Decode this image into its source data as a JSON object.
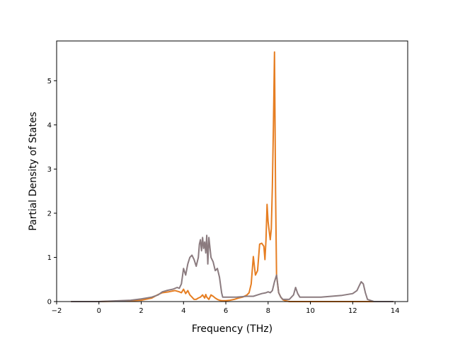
{
  "chart_data": {
    "type": "line",
    "title": "",
    "xlabel": "Frequency (THz)",
    "ylabel": "Partial Density of States",
    "xlim": [
      -2.0,
      14.6
    ],
    "ylim": [
      0,
      5.9
    ],
    "xticks": [
      -2,
      0,
      2,
      4,
      6,
      8,
      10,
      12,
      14
    ],
    "yticks": [
      0,
      1,
      2,
      3,
      4,
      5
    ],
    "grid": false,
    "legend": "none",
    "series": [
      {
        "color": "#e67e22",
        "x": [
          -1.3,
          0.0,
          1.0,
          2.0,
          2.5,
          2.8,
          3.0,
          3.3,
          3.6,
          3.8,
          3.9,
          4.0,
          4.1,
          4.2,
          4.3,
          4.4,
          4.5,
          4.6,
          4.7,
          4.8,
          4.9,
          5.0,
          5.05,
          5.1,
          5.2,
          5.3,
          5.4,
          5.5,
          5.6,
          5.7,
          5.8,
          5.9,
          6.0,
          6.2,
          6.4,
          6.6,
          6.8,
          7.0,
          7.1,
          7.2,
          7.3,
          7.35,
          7.4,
          7.5,
          7.6,
          7.7,
          7.8,
          7.85,
          7.9,
          7.95,
          8.0,
          8.05,
          8.1,
          8.15,
          8.2,
          8.25,
          8.3,
          8.35,
          8.4,
          8.45,
          8.5,
          8.6,
          8.7,
          8.8,
          9.0,
          9.5,
          10.0,
          11.0,
          12.0,
          12.5,
          13.5,
          13.9
        ],
        "y": [
          0.0,
          0.0,
          0.01,
          0.03,
          0.08,
          0.16,
          0.2,
          0.22,
          0.25,
          0.22,
          0.2,
          0.28,
          0.18,
          0.25,
          0.15,
          0.1,
          0.05,
          0.05,
          0.08,
          0.1,
          0.15,
          0.08,
          0.16,
          0.1,
          0.05,
          0.15,
          0.12,
          0.08,
          0.05,
          0.03,
          0.02,
          0.02,
          0.02,
          0.03,
          0.05,
          0.08,
          0.1,
          0.15,
          0.2,
          0.4,
          1.02,
          0.8,
          0.6,
          0.7,
          1.3,
          1.32,
          1.25,
          0.95,
          1.4,
          2.2,
          1.8,
          1.6,
          1.4,
          1.65,
          2.6,
          4.0,
          5.65,
          2.5,
          0.6,
          0.4,
          0.2,
          0.1,
          0.04,
          0.02,
          0.0,
          0.0,
          0.0,
          0.0,
          0.0,
          0.0,
          0.0,
          0.0
        ]
      },
      {
        "color": "#8b7b7f",
        "x": [
          -1.3,
          0.0,
          1.0,
          1.5,
          2.0,
          2.5,
          2.8,
          3.0,
          3.2,
          3.5,
          3.7,
          3.8,
          3.9,
          4.0,
          4.1,
          4.2,
          4.3,
          4.4,
          4.5,
          4.6,
          4.7,
          4.75,
          4.8,
          4.85,
          4.9,
          4.95,
          5.0,
          5.05,
          5.1,
          5.15,
          5.2,
          5.3,
          5.4,
          5.5,
          5.6,
          5.7,
          5.8,
          5.85,
          6.0,
          6.5,
          7.0,
          7.3,
          7.5,
          7.7,
          7.9,
          8.0,
          8.1,
          8.2,
          8.3,
          8.4,
          8.5,
          8.6,
          8.7,
          8.8,
          9.0,
          9.2,
          9.3,
          9.4,
          9.5,
          9.7,
          10.0,
          10.5,
          11.0,
          11.5,
          12.0,
          12.2,
          12.3,
          12.4,
          12.5,
          12.6,
          12.7,
          13.0,
          13.9
        ],
        "y": [
          0.0,
          0.0,
          0.02,
          0.03,
          0.06,
          0.1,
          0.15,
          0.22,
          0.25,
          0.28,
          0.32,
          0.3,
          0.4,
          0.75,
          0.6,
          0.85,
          1.0,
          1.05,
          0.95,
          0.8,
          1.0,
          1.3,
          1.4,
          1.15,
          1.45,
          1.2,
          1.35,
          1.1,
          1.5,
          0.85,
          1.45,
          1.0,
          0.9,
          0.7,
          0.75,
          0.55,
          0.2,
          0.1,
          0.1,
          0.1,
          0.12,
          0.12,
          0.15,
          0.18,
          0.2,
          0.22,
          0.2,
          0.25,
          0.45,
          0.6,
          0.2,
          0.1,
          0.05,
          0.05,
          0.05,
          0.15,
          0.32,
          0.18,
          0.1,
          0.1,
          0.1,
          0.1,
          0.12,
          0.14,
          0.18,
          0.25,
          0.35,
          0.45,
          0.4,
          0.2,
          0.05,
          0.0,
          0.0
        ]
      }
    ]
  }
}
